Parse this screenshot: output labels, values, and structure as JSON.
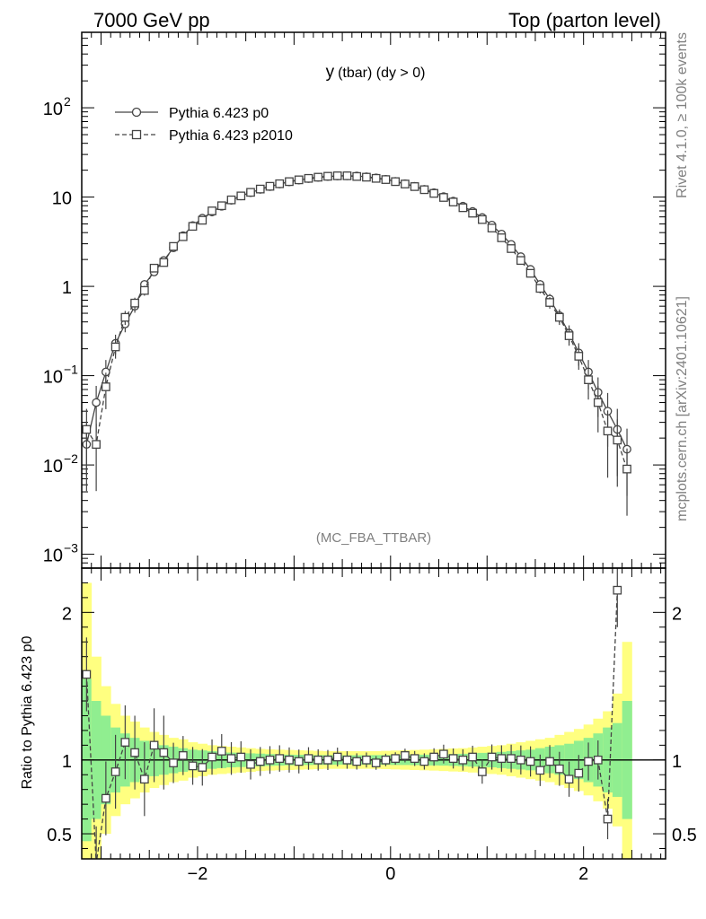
{
  "header": {
    "left": "7000 GeV pp",
    "right": "Top (parton level)"
  },
  "side_labels": {
    "rivet": "Rivet 4.1.0, ≥ 100k events",
    "mcplots": "mcplots.cern.ch [arXiv:2401.10621]"
  },
  "chart_data": [
    {
      "type": "line",
      "name": "main",
      "title": "y (tbar) (dy > 0)",
      "title_main": "y",
      "title_sub": "(tbar) (dy > 0)",
      "watermark": "(MC_FBA_TTBAR)",
      "xlim": [
        -3.2,
        2.85
      ],
      "ylim": [
        0.0007,
        700
      ],
      "yscale": "log",
      "yticks": [
        {
          "v": 0.001,
          "base": "10",
          "exp": "−3"
        },
        {
          "v": 0.01,
          "base": "10",
          "exp": "−2"
        },
        {
          "v": 0.1,
          "base": "10",
          "exp": "−1"
        },
        {
          "v": 1,
          "base": "1",
          "exp": ""
        },
        {
          "v": 10,
          "base": "10",
          "exp": ""
        },
        {
          "v": 100,
          "base": "10",
          "exp": "2"
        }
      ],
      "legend": {
        "placement": "top-left",
        "entries": [
          "Pythia 6.423 p0",
          "Pythia 6.423 p2010"
        ]
      },
      "series": [
        {
          "name": "Pythia 6.423 p0",
          "style": "solid-circle",
          "x": [
            -3.15,
            -3.05,
            -2.95,
            -2.85,
            -2.75,
            -2.65,
            -2.55,
            -2.45,
            -2.35,
            -2.25,
            -2.15,
            -2.05,
            -1.95,
            -1.85,
            -1.75,
            -1.65,
            -1.55,
            -1.45,
            -1.35,
            -1.25,
            -1.15,
            -1.05,
            -0.95,
            -0.85,
            -0.75,
            -0.65,
            -0.55,
            -0.45,
            -0.35,
            -0.25,
            -0.15,
            -0.05,
            0.05,
            0.15,
            0.25,
            0.35,
            0.45,
            0.55,
            0.65,
            0.75,
            0.85,
            0.95,
            1.05,
            1.15,
            1.25,
            1.35,
            1.45,
            1.55,
            1.65,
            1.75,
            1.85,
            1.95,
            2.05,
            2.15,
            2.25,
            2.35,
            2.45
          ],
          "y": [
            0.017,
            0.05,
            0.11,
            0.23,
            0.38,
            0.6,
            1.05,
            1.45,
            1.95,
            2.7,
            3.7,
            4.8,
            5.8,
            6.8,
            7.9,
            9.2,
            10.3,
            11.2,
            12.2,
            13.1,
            14.0,
            14.8,
            15.5,
            16.1,
            16.6,
            17.0,
            17.2,
            17.3,
            17.2,
            16.9,
            16.4,
            15.8,
            15.0,
            14.1,
            13.2,
            12.2,
            11.2,
            10.1,
            9.0,
            7.9,
            6.9,
            5.9,
            4.85,
            3.85,
            2.95,
            2.15,
            1.55,
            1.05,
            0.72,
            0.47,
            0.3,
            0.18,
            0.11,
            0.065,
            0.04,
            0.025,
            0.015
          ]
        },
        {
          "name": "Pythia 6.423 p2010",
          "style": "dashed-square",
          "x": [
            -3.15,
            -3.05,
            -2.95,
            -2.85,
            -2.75,
            -2.65,
            -2.55,
            -2.45,
            -2.35,
            -2.25,
            -2.15,
            -2.05,
            -1.95,
            -1.85,
            -1.75,
            -1.65,
            -1.55,
            -1.45,
            -1.35,
            -1.25,
            -1.15,
            -1.05,
            -0.95,
            -0.85,
            -0.75,
            -0.65,
            -0.55,
            -0.45,
            -0.35,
            -0.25,
            -0.15,
            -0.05,
            0.05,
            0.15,
            0.25,
            0.35,
            0.45,
            0.55,
            0.65,
            0.75,
            0.85,
            0.95,
            1.05,
            1.15,
            1.25,
            1.35,
            1.45,
            1.55,
            1.65,
            1.75,
            1.85,
            1.95,
            2.05,
            2.15,
            2.25,
            2.35,
            2.45
          ],
          "y": [
            0.025,
            0.017,
            0.075,
            0.21,
            0.45,
            0.65,
            0.9,
            1.6,
            1.85,
            2.8,
            3.6,
            4.7,
            5.5,
            7.0,
            8.0,
            9.3,
            10.3,
            11.3,
            12.3,
            13.2,
            14.1,
            14.9,
            15.6,
            16.2,
            16.7,
            17.1,
            17.3,
            17.3,
            17.0,
            16.7,
            16.2,
            15.7,
            14.9,
            14.0,
            13.1,
            12.1,
            11.0,
            9.9,
            8.8,
            7.6,
            6.6,
            5.6,
            4.5,
            3.5,
            2.65,
            1.95,
            1.4,
            0.95,
            0.66,
            0.45,
            0.28,
            0.165,
            0.09,
            0.05,
            0.024,
            0.019,
            0.009
          ]
        }
      ]
    },
    {
      "type": "line",
      "name": "ratio",
      "ylabel": "Ratio to Pythia 6.423 p0",
      "xlim": [
        -3.2,
        2.85
      ],
      "ylim": [
        0.33,
        2.3
      ],
      "yticks": [
        0.5,
        1,
        2
      ],
      "xticks": [
        -2,
        0,
        2
      ],
      "xtick_labels": [
        "−2",
        "0",
        "2"
      ],
      "reference": 1.0,
      "band_edges": [
        -3.2,
        -3.1,
        -3.0,
        -2.9,
        -2.8,
        -2.7,
        -2.6,
        -2.5,
        -2.4,
        -2.3,
        -2.2,
        -2.1,
        -2.0,
        -1.9,
        -1.8,
        -1.7,
        -1.6,
        -1.5,
        -1.4,
        -1.3,
        -1.2,
        -1.1,
        -1.0,
        -0.9,
        -0.8,
        -0.7,
        -0.6,
        -0.5,
        -0.4,
        -0.3,
        -0.2,
        -0.1,
        0.0,
        0.1,
        0.2,
        0.3,
        0.4,
        0.5,
        0.6,
        0.7,
        0.8,
        0.9,
        1.0,
        1.1,
        1.2,
        1.3,
        1.4,
        1.5,
        1.6,
        1.7,
        1.8,
        1.9,
        2.0,
        2.1,
        2.2,
        2.3,
        2.4,
        2.5
      ],
      "band_1sigma": [
        0.55,
        0.4,
        0.3,
        0.22,
        0.18,
        0.15,
        0.13,
        0.11,
        0.1,
        0.09,
        0.08,
        0.07,
        0.065,
        0.06,
        0.055,
        0.05,
        0.048,
        0.045,
        0.043,
        0.04,
        0.038,
        0.036,
        0.035,
        0.034,
        0.033,
        0.033,
        0.032,
        0.032,
        0.032,
        0.032,
        0.033,
        0.033,
        0.034,
        0.034,
        0.035,
        0.036,
        0.037,
        0.038,
        0.04,
        0.042,
        0.045,
        0.048,
        0.05,
        0.055,
        0.06,
        0.065,
        0.07,
        0.08,
        0.09,
        0.1,
        0.11,
        0.13,
        0.15,
        0.18,
        0.22,
        0.25,
        0.4
      ],
      "band_2sigma": [
        1.2,
        0.7,
        0.5,
        0.38,
        0.3,
        0.26,
        0.22,
        0.19,
        0.17,
        0.15,
        0.14,
        0.12,
        0.11,
        0.1,
        0.095,
        0.09,
        0.085,
        0.08,
        0.075,
        0.072,
        0.07,
        0.068,
        0.066,
        0.064,
        0.062,
        0.06,
        0.06,
        0.06,
        0.06,
        0.06,
        0.06,
        0.062,
        0.064,
        0.066,
        0.068,
        0.07,
        0.072,
        0.075,
        0.078,
        0.08,
        0.085,
        0.09,
        0.095,
        0.1,
        0.11,
        0.12,
        0.13,
        0.14,
        0.15,
        0.17,
        0.19,
        0.21,
        0.24,
        0.28,
        0.33,
        0.45,
        0.8
      ],
      "series": [
        {
          "name": "Pythia 6.423 p2010 / p0",
          "x": [
            -3.15,
            -3.05,
            -2.95,
            -2.85,
            -2.75,
            -2.65,
            -2.55,
            -2.45,
            -2.35,
            -2.25,
            -2.15,
            -2.05,
            -1.95,
            -1.85,
            -1.75,
            -1.65,
            -1.55,
            -1.45,
            -1.35,
            -1.25,
            -1.15,
            -1.05,
            -0.95,
            -0.85,
            -0.75,
            -0.65,
            -0.55,
            -0.45,
            -0.35,
            -0.25,
            -0.15,
            -0.05,
            0.05,
            0.15,
            0.25,
            0.35,
            0.45,
            0.55,
            0.65,
            0.75,
            0.85,
            0.95,
            1.05,
            1.15,
            1.25,
            1.35,
            1.45,
            1.55,
            1.65,
            1.75,
            1.85,
            1.95,
            2.05,
            2.15,
            2.25,
            2.35,
            2.45
          ],
          "y": [
            1.58,
            0.3,
            0.74,
            0.92,
            1.12,
            1.05,
            0.87,
            1.1,
            1.05,
            0.98,
            1.03,
            0.96,
            0.95,
            1.02,
            1.06,
            1.01,
            1.02,
            0.97,
            0.99,
            1.0,
            1.01,
            1.0,
            0.99,
            1.01,
            1.0,
            1.0,
            1.02,
            1.0,
            0.99,
            1.0,
            0.98,
            1.0,
            1.01,
            1.03,
            1.01,
            0.99,
            1.02,
            1.04,
            1.01,
            1.0,
            1.02,
            0.92,
            1.02,
            1.01,
            1.01,
            1.0,
            0.99,
            0.93,
            0.99,
            0.94,
            0.87,
            0.91,
            0.99,
            1.0,
            0.6,
            2.15,
            null
          ]
        }
      ]
    }
  ]
}
